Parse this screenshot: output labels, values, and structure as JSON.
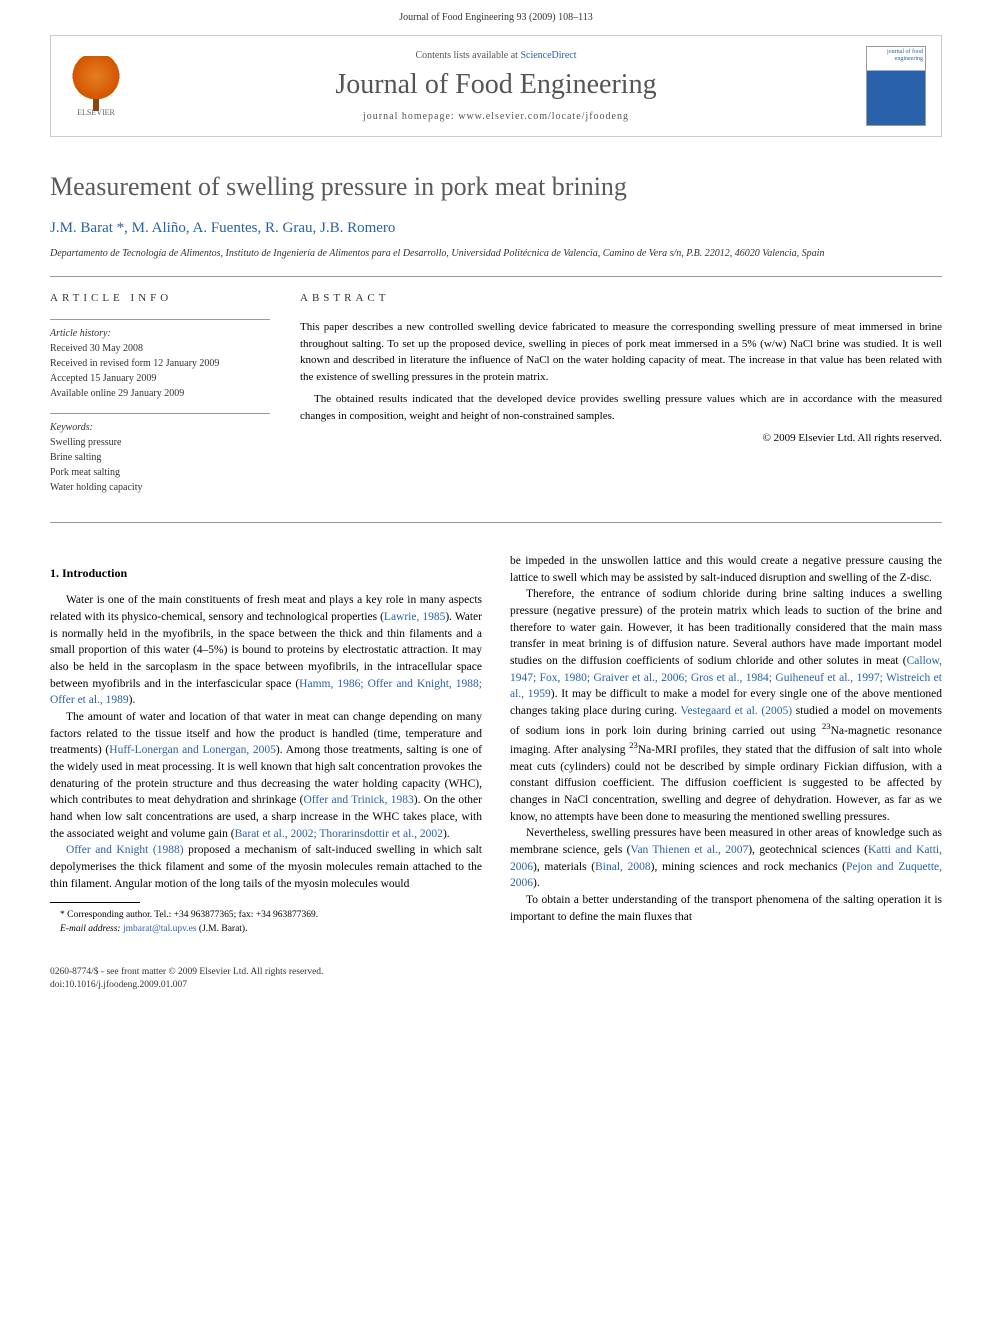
{
  "page_header": "Journal of Food Engineering 93 (2009) 108–113",
  "banner": {
    "contents_prefix": "Contents lists available at ",
    "contents_link": "ScienceDirect",
    "journal_name": "Journal of Food Engineering",
    "homepage_prefix": "journal homepage: ",
    "homepage_url": "www.elsevier.com/locate/jfoodeng",
    "elsevier_label": "ELSEVIER",
    "cover_text": "journal of\nfood\nengineering"
  },
  "title": "Measurement of swelling pressure in pork meat brining",
  "authors": "J.M. Barat *, M. Aliño, A. Fuentes, R. Grau, J.B. Romero",
  "affiliation": "Departamento de Tecnología de Alimentos, Instituto de Ingeniería de Alimentos para el Desarrollo, Universidad Politécnica de Valencia, Camino de Vera s/n, P.B. 22012, 46020 Valencia, Spain",
  "article_info": {
    "heading": "ARTICLE INFO",
    "history_label": "Article history:",
    "history": "Received 30 May 2008\nReceived in revised form 12 January 2009\nAccepted 15 January 2009\nAvailable online 29 January 2009",
    "keywords_label": "Keywords:",
    "keywords": "Swelling pressure\nBrine salting\nPork meat salting\nWater holding capacity"
  },
  "abstract": {
    "heading": "ABSTRACT",
    "p1": "This paper describes a new controlled swelling device fabricated to measure the corresponding swelling pressure of meat immersed in brine throughout salting. To set up the proposed device, swelling in pieces of pork meat immersed in a 5% (w/w) NaCl brine was studied. It is well known and described in literature the influence of NaCl on the water holding capacity of meat. The increase in that value has been related with the existence of swelling pressures in the protein matrix.",
    "p2": "The obtained results indicated that the developed device provides swelling pressure values which are in accordance with the measured changes in composition, weight and height of non-constrained samples.",
    "copyright": "© 2009 Elsevier Ltd. All rights reserved."
  },
  "section1_heading": "1. Introduction",
  "body": {
    "p1a": "Water is one of the main constituents of fresh meat and plays a key role in many aspects related with its physico-chemical, sensory and technological properties (",
    "p1_ref1": "Lawrie, 1985",
    "p1b": "). Water is normally held in the myofibrils, in the space between the thick and thin filaments and a small proportion of this water (4–5%) is bound to proteins by electrostatic attraction. It may also be held in the sarcoplasm in the space between myofibrils, in the intracellular space between myofibrils and in the interfascicular space (",
    "p1_ref2": "Hamm, 1986; Offer and Knight, 1988; Offer et al., 1989",
    "p1c": ").",
    "p2a": "The amount of water and location of that water in meat can change depending on many factors related to the tissue itself and how the product is handled (time, temperature and treatments) (",
    "p2_ref1": "Huff-Lonergan and Lonergan, 2005",
    "p2b": "). Among those treatments, salting is one of the widely used in meat processing. It is well known that high salt concentration provokes the denaturing of the protein structure and thus decreasing the water holding capacity (WHC), which contributes to meat dehydration and shrinkage (",
    "p2_ref2": "Offer and Trinick, 1983",
    "p2c": "). On the other hand when low salt concentrations are used, a sharp increase in the WHC takes place, with the associated weight and volume gain (",
    "p2_ref3": "Barat et al., 2002; Thorarinsdottir et al., 2002",
    "p2d": ").",
    "p3a": "",
    "p3_ref1": "Offer and Knight (1988)",
    "p3b": " proposed a mechanism of salt-induced swelling in which salt depolymerises the thick filament and some of the myosin molecules remain attached to the thin filament. Angular motion of the long tails of the myosin molecules would",
    "p4": "be impeded in the unswollen lattice and this would create a negative pressure causing the lattice to swell which may be assisted by salt-induced disruption and swelling of the Z-disc.",
    "p5a": "Therefore, the entrance of sodium chloride during brine salting induces a swelling pressure (negative pressure) of the protein matrix which leads to suction of the brine and therefore to water gain. However, it has been traditionally considered that the main mass transfer in meat brining is of diffusion nature. Several authors have made important model studies on the diffusion coefficients of sodium chloride and other solutes in meat (",
    "p5_ref1": "Callow, 1947; Fox, 1980; Graiver et al., 2006; Gros et al., 1984; Guiheneuf et al., 1997; Wistreich et al., 1959",
    "p5b": "). It may be difficult to make a model for every single one of the above mentioned changes taking place during curing. ",
    "p5_ref2": "Vestegaard et al. (2005)",
    "p5c": " studied a model on movements of sodium ions in pork loin during brining carried out using ",
    "p5_sup1": "23",
    "p5d": "Na-magnetic resonance imaging. After analysing ",
    "p5_sup2": "23",
    "p5e": "Na-MRI profiles, they stated that the diffusion of salt into whole meat cuts (cylinders) could not be described by simple ordinary Fickian diffusion, with a constant diffusion coefficient. The diffusion coefficient is suggested to be affected by changes in NaCl concentration, swelling and degree of dehydration. However, as far as we know, no attempts have been done to measuring the mentioned swelling pressures.",
    "p6a": "Nevertheless, swelling pressures have been measured in other areas of knowledge such as membrane science, gels (",
    "p6_ref1": "Van Thienen et al., 2007",
    "p6b": "), geotechnical sciences (",
    "p6_ref2": "Katti and Katti, 2006",
    "p6c": "), materials (",
    "p6_ref3": "Binal, 2008",
    "p6d": "), mining sciences and rock mechanics (",
    "p6_ref4": "Pejon and Zuquette, 2006",
    "p6e": ").",
    "p7": "To obtain a better understanding of the transport phenomena of the salting operation it is important to define the main fluxes that"
  },
  "footnote": {
    "corresponding": "* Corresponding author. Tel.: +34 963877365; fax: +34 963877369.",
    "email_label": "E-mail address: ",
    "email": "jmbarat@tal.upv.es",
    "email_suffix": " (J.M. Barat)."
  },
  "footer": {
    "line1": "0260-8774/$ - see front matter © 2009 Elsevier Ltd. All rights reserved.",
    "line2": "doi:10.1016/j.jfoodeng.2009.01.007"
  },
  "colors": {
    "link": "#2962aa",
    "text": "#000000",
    "heading_gray": "#5a5a5a",
    "border": "#cccccc"
  }
}
